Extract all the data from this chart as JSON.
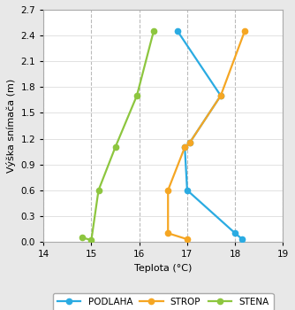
{
  "podlaha_temp": [
    18.15,
    18.0,
    17.0,
    16.95,
    17.05,
    17.7,
    16.8
  ],
  "podlaha_height": [
    0.03,
    0.1,
    0.6,
    1.1,
    1.15,
    1.7,
    2.45
  ],
  "strop_temp": [
    17.0,
    16.6,
    16.6,
    16.95,
    17.05,
    17.7,
    18.2
  ],
  "strop_height": [
    0.03,
    0.1,
    0.6,
    1.1,
    1.15,
    1.7,
    2.45
  ],
  "stena_temp": [
    14.8,
    15.0,
    15.15,
    15.5,
    15.95,
    16.3
  ],
  "stena_height": [
    0.05,
    0.02,
    0.6,
    1.1,
    1.7,
    2.45
  ],
  "podlaha_color": "#2AABE2",
  "strop_color": "#F5A623",
  "stena_color": "#8DC63F",
  "xlabel": "Teplota (°C)",
  "ylabel": "Výška snímača (m)",
  "xlim": [
    14,
    19
  ],
  "ylim": [
    0,
    2.7
  ],
  "xticks": [
    14,
    15,
    16,
    17,
    18,
    19
  ],
  "yticks": [
    0,
    0.3,
    0.6,
    0.9,
    1.2,
    1.5,
    1.8,
    2.1,
    2.4,
    2.7
  ],
  "legend_labels": [
    "PODLAHA",
    "STROP",
    "STENA"
  ],
  "background_color": "#e8e8e8",
  "plot_background": "#ffffff",
  "grid_x_color": "#bbbbbb",
  "grid_y_color": "#dddddd",
  "spine_color": "#aaaaaa"
}
